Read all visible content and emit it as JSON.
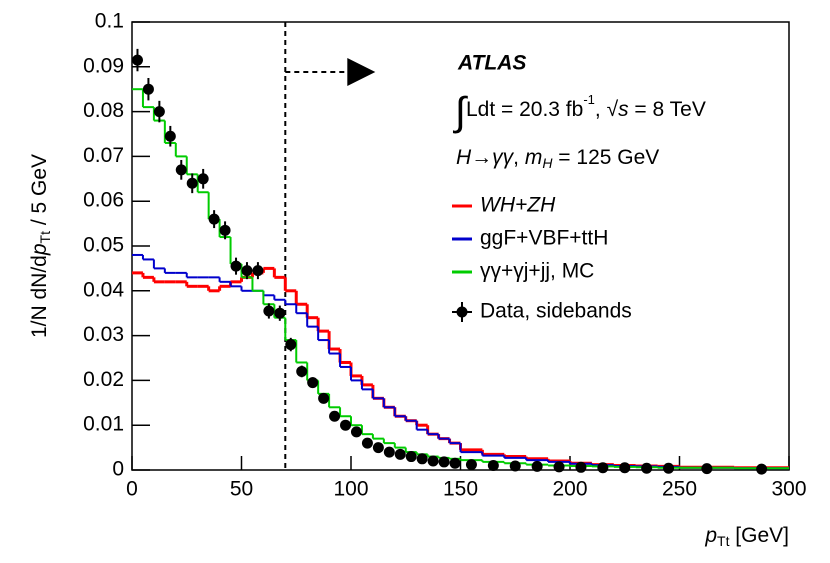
{
  "chart_data": {
    "type": "histogram",
    "x_label": [
      "p",
      "Tt",
      " [GeV]"
    ],
    "y_label": [
      "1/N dN/d",
      "p",
      "Tt",
      " / 5 GeV"
    ],
    "annotations": {
      "experiment": "ATLAS",
      "lumi": [
        "∫",
        "Ldt = 20.3 fb",
        "-1",
        ", ",
        "√",
        "s",
        " = 8 TeV"
      ],
      "process": [
        "H",
        "→",
        "γγ",
        ", ",
        "m",
        "H",
        " = 125 GeV"
      ]
    },
    "cut": 70,
    "xlim": [
      0,
      300
    ],
    "ylim": [
      0,
      0.1
    ],
    "xticks": [
      0,
      50,
      100,
      150,
      200,
      250,
      300
    ],
    "yticks": [
      0,
      0.01,
      0.02,
      0.03,
      0.04,
      0.05,
      0.06,
      0.07,
      0.08,
      0.09,
      0.1
    ],
    "bins": [
      0,
      5,
      10,
      15,
      20,
      25,
      30,
      35,
      40,
      45,
      50,
      55,
      60,
      65,
      70,
      75,
      80,
      85,
      90,
      95,
      100,
      105,
      110,
      115,
      120,
      125,
      130,
      135,
      140,
      145,
      150,
      160,
      170,
      180,
      190,
      200,
      210,
      220,
      230,
      240,
      250,
      275,
      300
    ],
    "series": [
      {
        "name": "WH+ZH",
        "color": "#ff0000",
        "width": 3,
        "values": [
          0.044,
          0.043,
          0.042,
          0.042,
          0.042,
          0.041,
          0.041,
          0.04,
          0.041,
          0.042,
          0.043,
          0.044,
          0.045,
          0.043,
          0.04,
          0.037,
          0.034,
          0.031,
          0.027,
          0.024,
          0.021,
          0.019,
          0.016,
          0.014,
          0.012,
          0.011,
          0.01,
          0.008,
          0.007,
          0.006,
          0.0045,
          0.0035,
          0.003,
          0.0025,
          0.002,
          0.0015,
          0.0012,
          0.001,
          0.0009,
          0.0008,
          0.0006,
          0.0005
        ]
      },
      {
        "name": "ggF+VBF+ttH",
        "color": "#0000cc",
        "width": 2,
        "values": [
          0.048,
          0.047,
          0.045,
          0.044,
          0.044,
          0.043,
          0.043,
          0.043,
          0.042,
          0.041,
          0.04,
          0.04,
          0.039,
          0.038,
          0.037,
          0.035,
          0.032,
          0.029,
          0.026,
          0.023,
          0.02,
          0.018,
          0.016,
          0.014,
          0.012,
          0.011,
          0.009,
          0.008,
          0.007,
          0.006,
          0.004,
          0.0032,
          0.0027,
          0.0022,
          0.0018,
          0.0014,
          0.0011,
          0.0009,
          0.0008,
          0.0007,
          0.0005,
          0.0004
        ]
      },
      {
        "name": "γγ+γj+jj, MC",
        "color": "#00cc00",
        "width": 2,
        "values": [
          0.085,
          0.081,
          0.078,
          0.073,
          0.07,
          0.066,
          0.062,
          0.056,
          0.052,
          0.046,
          0.043,
          0.04,
          0.037,
          0.034,
          0.029,
          0.024,
          0.02,
          0.017,
          0.014,
          0.012,
          0.01,
          0.008,
          0.007,
          0.006,
          0.005,
          0.004,
          0.0035,
          0.003,
          0.0027,
          0.0025,
          0.0022,
          0.0018,
          0.0015,
          0.0012,
          0.001,
          0.0009,
          0.0008,
          0.0007,
          0.0006,
          0.0005,
          0.0005,
          0.0004
        ]
      }
    ],
    "points": {
      "name": "Data, sidebands",
      "color": "#000000",
      "x": [
        2.5,
        7.5,
        12.5,
        17.5,
        22.5,
        27.5,
        32.5,
        37.5,
        42.5,
        47.5,
        52.5,
        57.5,
        62.5,
        67.5,
        72.5,
        77.5,
        82.5,
        87.5,
        92.5,
        97.5,
        102.5,
        107.5,
        112.5,
        117.5,
        122.5,
        127.5,
        132.5,
        137.5,
        142.5,
        147.5,
        155,
        165,
        175,
        185,
        195,
        205,
        215,
        225,
        235,
        245,
        262.5,
        287.5
      ],
      "values": [
        0.0915,
        0.085,
        0.08,
        0.0745,
        0.067,
        0.064,
        0.065,
        0.056,
        0.0535,
        0.0455,
        0.0445,
        0.0445,
        0.0355,
        0.035,
        0.028,
        0.022,
        0.0195,
        0.016,
        0.012,
        0.01,
        0.0085,
        0.006,
        0.005,
        0.004,
        0.0035,
        0.003,
        0.0025,
        0.002,
        0.0018,
        0.0015,
        0.0012,
        0.001,
        0.0009,
        0.0008,
        0.0007,
        0.0006,
        0.0005,
        0.0005,
        0.0004,
        0.0004,
        0.0003,
        0.0002
      ],
      "errors": [
        0.0025,
        0.0025,
        0.0024,
        0.0023,
        0.0022,
        0.0022,
        0.0022,
        0.002,
        0.002,
        0.0019,
        0.0019,
        0.0019,
        0.0017,
        0.0017,
        0.0015,
        0.0013,
        0.0012,
        0.0011,
        0.001,
        0.0009,
        0.0008,
        0.0007,
        0.0006,
        0.0006,
        0.0005,
        0.0005,
        0.0004,
        0.0004,
        0.0004,
        0.0003,
        0.0003,
        0.0002,
        0.0002,
        0.0002,
        0.0002,
        0.0002,
        0.0001,
        0.0001,
        0.0001,
        0.0001,
        0.0001,
        0.0001
      ]
    }
  }
}
